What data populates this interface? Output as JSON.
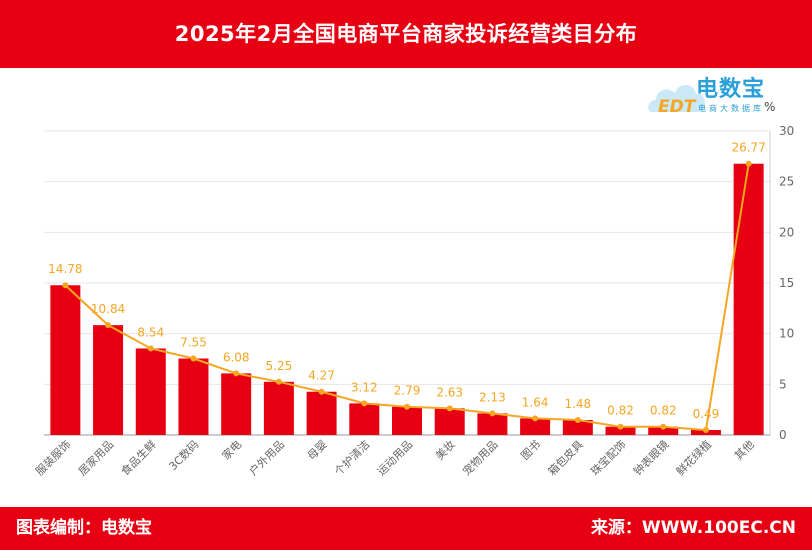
{
  "header": {
    "title": "2025年2月全国电商平台商家投诉经营类目分布"
  },
  "footer": {
    "left": "图表编制：电数宝",
    "right": "来源：WWW.100EC.CN"
  },
  "logo": {
    "main": "电数宝",
    "sub": "电商大数据库",
    "mark": "EDT"
  },
  "chart_data": {
    "type": "bar",
    "categories": [
      "服装服饰",
      "居家用品",
      "食品生鲜",
      "3C数码",
      "家电",
      "户外用品",
      "母婴",
      "个护清洁",
      "运动用品",
      "美妆",
      "宠物用品",
      "图书",
      "箱包皮具",
      "珠宝配饰",
      "钟表眼镜",
      "鲜花绿植",
      "其他"
    ],
    "values": [
      14.78,
      10.84,
      8.54,
      7.55,
      6.08,
      5.25,
      4.27,
      3.12,
      2.79,
      2.63,
      2.13,
      1.64,
      1.48,
      0.82,
      0.82,
      0.49,
      26.77
    ],
    "ylabel": "%",
    "ylim": [
      0,
      30
    ],
    "yticks": [
      0,
      5,
      10,
      15,
      20,
      25,
      30
    ],
    "y_axis_side": "right",
    "overlay_line": true,
    "colors": {
      "bar": "#e60012",
      "line": "#f5a623",
      "grid": "#e6e6e6",
      "tick_text": "#666666"
    }
  }
}
